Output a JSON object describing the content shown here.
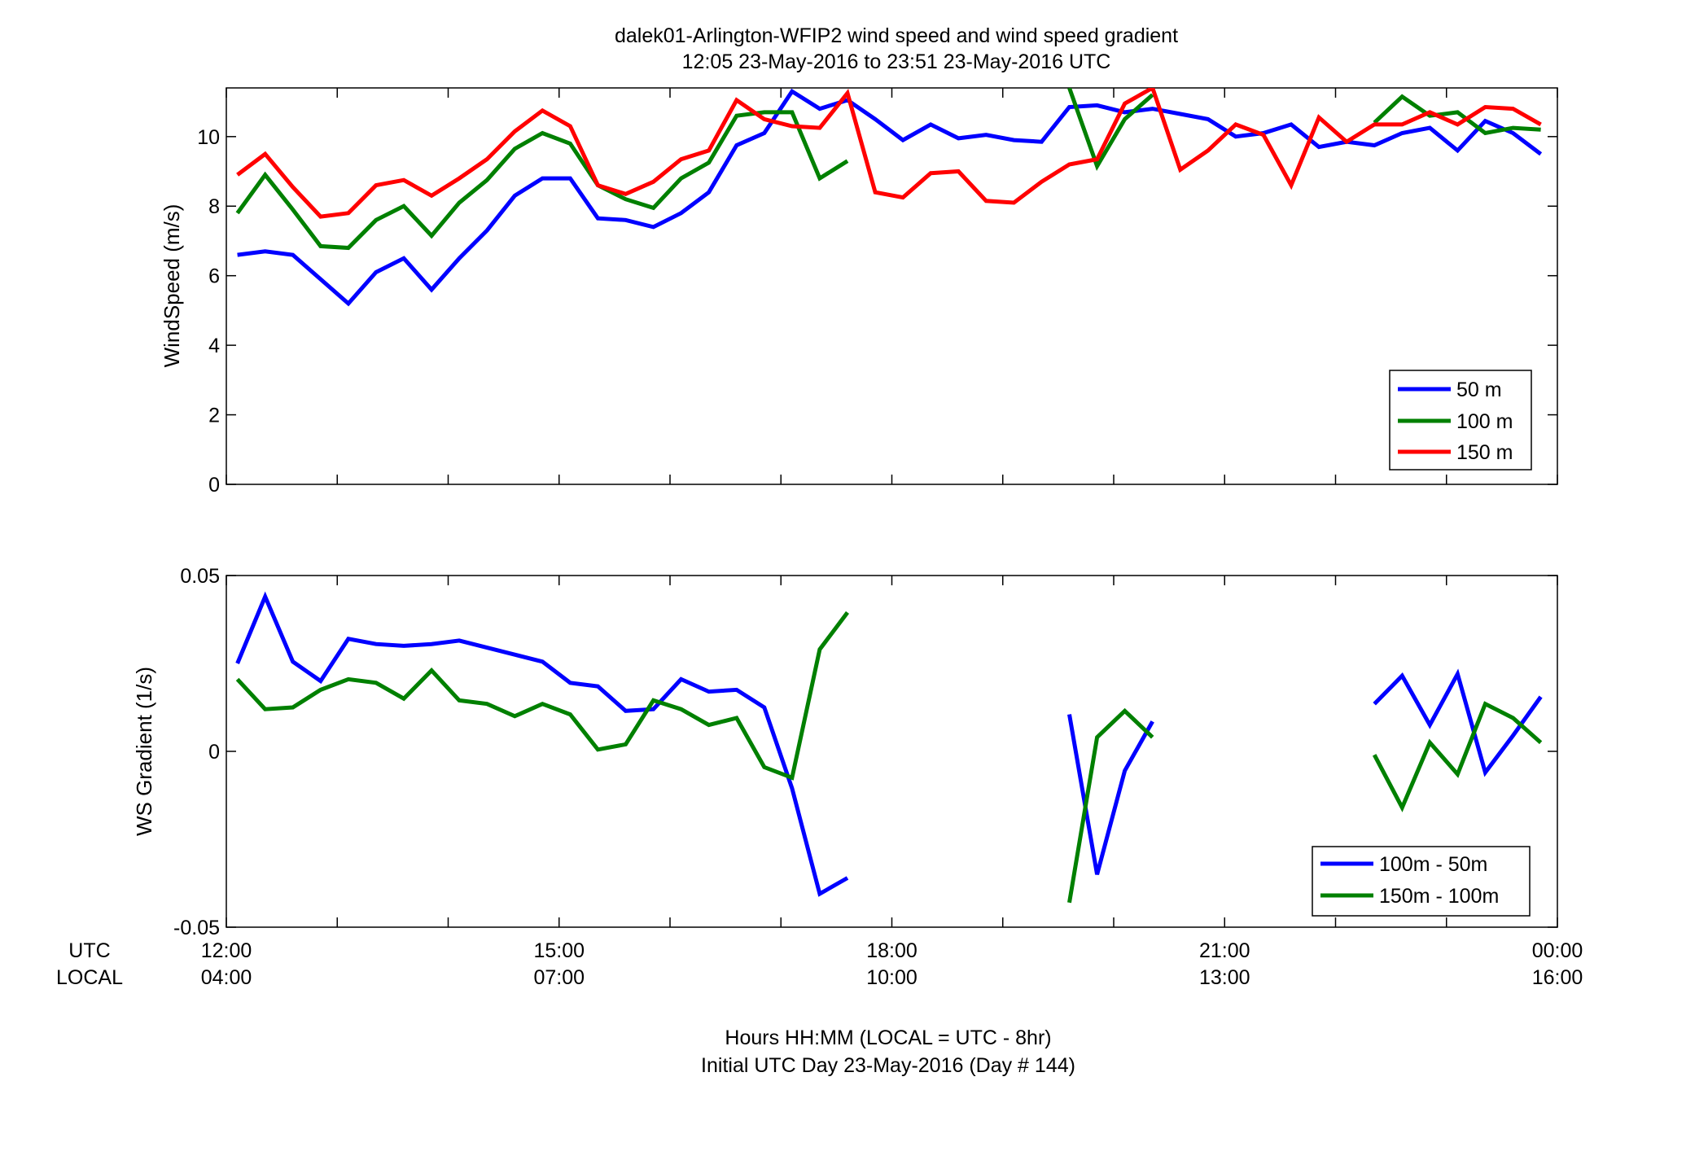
{
  "title_line1": "dalek01-Arlington-WFIP2  wind speed and wind speed gradient",
  "title_line2": "12:05 23-May-2016 to 23:51 23-May-2016  UTC",
  "xlabel_line1": "Hours HH:MM  (LOCAL = UTC - 8hr)",
  "xlabel_line2": "Initial UTC Day 23-May-2016 (Day # 144)",
  "xrow_utc": "UTC",
  "xrow_local": "LOCAL",
  "x_ticks_utc": [
    "12:00",
    "15:00",
    "18:00",
    "21:00",
    "00:00"
  ],
  "x_ticks_local": [
    "04:00",
    "07:00",
    "10:00",
    "13:00",
    "16:00"
  ],
  "colors": {
    "s50": "#0000ff",
    "s100": "#008000",
    "s150": "#ff0000"
  },
  "chart_data": [
    {
      "type": "line",
      "ylabel": "WindSpeed (m/s)",
      "xlim": [
        12.0,
        24.0
      ],
      "ylim": [
        0,
        11.4
      ],
      "yticks": [
        0,
        2,
        4,
        6,
        8,
        10
      ],
      "legend_position": "lower-right",
      "x_unit": "hours UTC",
      "series": [
        {
          "name": "50 m",
          "x": [
            12.1,
            12.35,
            12.6,
            12.85,
            13.1,
            13.35,
            13.6,
            13.85,
            14.1,
            14.35,
            14.6,
            14.85,
            15.1,
            15.35,
            15.6,
            15.85,
            16.1,
            16.35,
            16.6,
            16.85,
            17.1,
            17.35,
            17.6,
            17.85,
            18.1,
            18.35,
            18.6,
            18.85,
            19.1,
            19.35,
            19.6,
            19.85,
            20.1,
            20.35,
            20.6,
            20.85,
            21.1,
            21.35,
            21.6,
            21.85,
            22.1,
            22.35,
            22.6,
            22.85,
            23.1,
            23.35,
            23.6,
            23.85
          ],
          "values": [
            6.6,
            6.7,
            6.6,
            5.9,
            5.2,
            6.1,
            6.5,
            5.6,
            6.5,
            7.3,
            8.3,
            8.8,
            8.8,
            7.65,
            7.6,
            7.4,
            7.8,
            8.4,
            9.75,
            10.1,
            11.3,
            10.8,
            11.05,
            10.5,
            9.9,
            10.35,
            9.95,
            10.05,
            9.9,
            9.85,
            10.85,
            10.9,
            10.7,
            10.8,
            10.65,
            10.5,
            10.0,
            10.1,
            10.35,
            9.7,
            9.85,
            9.75,
            10.1,
            10.25,
            9.6,
            10.45,
            10.1,
            9.5
          ]
        },
        {
          "name": "100 m",
          "x": [
            12.1,
            12.35,
            12.6,
            12.85,
            13.1,
            13.35,
            13.6,
            13.85,
            14.1,
            14.35,
            14.6,
            14.85,
            15.1,
            15.35,
            15.6,
            15.85,
            16.1,
            16.35,
            16.6,
            16.85,
            17.1,
            17.35,
            17.6,
            null,
            19.6,
            19.85,
            20.1,
            20.35,
            null,
            22.35,
            22.6,
            22.85,
            23.1,
            23.35,
            23.6,
            23.85
          ],
          "values": [
            7.8,
            8.9,
            7.9,
            6.85,
            6.8,
            7.6,
            8.0,
            7.15,
            8.1,
            8.75,
            9.65,
            10.1,
            9.8,
            8.6,
            8.2,
            7.95,
            8.8,
            9.25,
            10.6,
            10.7,
            10.7,
            8.8,
            9.3,
            null,
            11.4,
            9.15,
            10.5,
            11.2,
            null,
            10.4,
            11.15,
            10.6,
            10.7,
            10.1,
            10.25,
            10.2
          ]
        },
        {
          "name": "150 m",
          "x": [
            12.1,
            12.35,
            12.6,
            12.85,
            13.1,
            13.35,
            13.6,
            13.85,
            14.1,
            14.35,
            14.6,
            14.85,
            15.1,
            15.35,
            15.6,
            15.85,
            16.1,
            16.35,
            16.6,
            16.85,
            17.1,
            17.35,
            17.6,
            17.85,
            18.1,
            18.35,
            18.6,
            18.85,
            19.1,
            19.35,
            19.6,
            19.85,
            20.1,
            20.35,
            20.6,
            20.85,
            21.1,
            21.35,
            21.6,
            21.85,
            22.1,
            22.35,
            22.6,
            22.85,
            23.1,
            23.35,
            23.6,
            23.85
          ],
          "values": [
            8.9,
            9.5,
            8.55,
            7.7,
            7.8,
            8.6,
            8.75,
            8.3,
            8.8,
            9.35,
            10.15,
            10.75,
            10.3,
            8.6,
            8.35,
            8.7,
            9.35,
            9.6,
            11.05,
            10.5,
            10.3,
            10.25,
            11.25,
            8.4,
            8.25,
            8.95,
            9.0,
            8.15,
            8.1,
            8.7,
            9.2,
            9.35,
            10.95,
            11.4,
            9.05,
            9.6,
            10.35,
            10.05,
            8.6,
            10.55,
            9.85,
            10.35,
            10.35,
            10.7,
            10.35,
            10.85,
            10.8,
            10.35
          ]
        }
      ]
    },
    {
      "type": "line",
      "ylabel": "WS Gradient (1/s)",
      "xlim": [
        12.0,
        24.0
      ],
      "ylim": [
        -0.05,
        0.05
      ],
      "yticks": [
        -0.05,
        0,
        0.05
      ],
      "ytick_labels": [
        "-0.05",
        "0",
        "0.05"
      ],
      "legend_position": "lower-right",
      "x_unit": "hours UTC",
      "series": [
        {
          "name": "100m - 50m",
          "x": [
            12.1,
            12.35,
            12.6,
            12.85,
            13.1,
            13.35,
            13.6,
            13.85,
            14.1,
            14.35,
            14.6,
            14.85,
            15.1,
            15.35,
            15.6,
            15.85,
            16.1,
            16.35,
            16.6,
            16.85,
            17.1,
            17.35,
            17.6,
            null,
            19.6,
            19.85,
            20.1,
            20.35,
            null,
            22.35,
            22.6,
            22.85,
            23.1,
            23.35,
            23.6,
            23.85
          ],
          "values": [
            0.025,
            0.044,
            0.0255,
            0.02,
            0.032,
            0.0305,
            0.03,
            0.0305,
            0.0315,
            0.0295,
            0.0275,
            0.0255,
            0.0195,
            0.0185,
            0.0115,
            0.012,
            0.0205,
            0.017,
            0.0175,
            0.0125,
            -0.0105,
            -0.0405,
            -0.036,
            null,
            0.0105,
            -0.035,
            -0.0055,
            0.0085,
            null,
            0.0135,
            0.0215,
            0.0075,
            0.022,
            -0.006,
            0.0045,
            0.0155
          ]
        },
        {
          "name": "150m - 100m",
          "x": [
            12.1,
            12.35,
            12.6,
            12.85,
            13.1,
            13.35,
            13.6,
            13.85,
            14.1,
            14.35,
            14.6,
            14.85,
            15.1,
            15.35,
            15.6,
            15.85,
            16.1,
            16.35,
            16.6,
            16.85,
            17.1,
            17.35,
            17.6,
            null,
            19.6,
            19.85,
            20.1,
            20.35,
            null,
            22.35,
            22.6,
            22.85,
            23.1,
            23.35,
            23.6,
            23.85
          ],
          "values": [
            0.0205,
            0.012,
            0.0125,
            0.0175,
            0.0205,
            0.0195,
            0.015,
            0.023,
            0.0145,
            0.0135,
            0.01,
            0.0135,
            0.0105,
            0.0005,
            0.002,
            0.0145,
            0.012,
            0.0075,
            0.0095,
            -0.0045,
            -0.0075,
            0.029,
            0.0395,
            null,
            -0.043,
            0.004,
            0.0115,
            0.004,
            null,
            -0.001,
            -0.016,
            0.0025,
            -0.0065,
            0.0135,
            0.0095,
            0.0025
          ]
        }
      ]
    }
  ]
}
